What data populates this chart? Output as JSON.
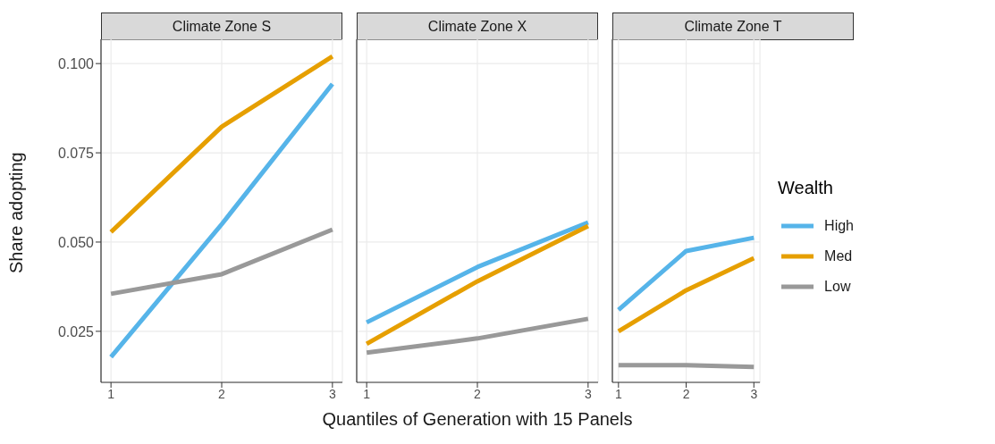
{
  "chart_data": [
    {
      "type": "line",
      "title": "Climate Zone S",
      "ylabel": "Share adopting",
      "x": [
        1,
        2,
        3
      ],
      "xlim": [
        0.91,
        3.09
      ],
      "xticks": [
        1,
        2,
        3
      ],
      "ylim": [
        0.0107,
        0.1068
      ],
      "yticks": [
        {
          "value": 0.025,
          "label": "0.025"
        },
        {
          "value": 0.05,
          "label": "0.050"
        },
        {
          "value": 0.075,
          "label": "0.075"
        },
        {
          "value": 0.1,
          "label": "0.100"
        }
      ],
      "grid": true,
      "legend": false,
      "series": [
        {
          "color": "#56b4e9",
          "values": [
            0.0178,
            0.055,
            0.0943
          ]
        },
        {
          "color": "#e69f00",
          "values": [
            0.0528,
            0.0823,
            0.102
          ]
        },
        {
          "color": "#999999",
          "values": [
            0.0355,
            0.041,
            0.0535
          ]
        }
      ]
    },
    {
      "type": "line",
      "title": "Climate Zone X",
      "xlabel": "Quantiles of Generation with 15 Panels",
      "x": [
        1,
        2,
        3
      ],
      "xlim": [
        0.91,
        3.09
      ],
      "xticks": [
        1,
        2,
        3
      ],
      "ylim": [
        0.0107,
        0.1068
      ],
      "yticks": [
        0.025,
        0.05,
        0.075,
        0.1
      ],
      "tick_labels": "x",
      "grid": true,
      "legend": false,
      "series": [
        {
          "color": "#56b4e9",
          "values": [
            0.0275,
            0.043,
            0.0555
          ]
        },
        {
          "color": "#e69f00",
          "values": [
            0.0215,
            0.039,
            0.0545
          ]
        },
        {
          "color": "#999999",
          "values": [
            0.019,
            0.023,
            0.0285
          ]
        }
      ]
    },
    {
      "type": "line",
      "title": "Climate Zone T",
      "legend_title": "Wealth",
      "x": [
        1,
        2,
        3
      ],
      "xlim": [
        0.91,
        3.09
      ],
      "xticks": [
        1,
        2,
        3
      ],
      "ylim": [
        0.0107,
        0.1068
      ],
      "yticks": [
        0.025,
        0.05,
        0.075,
        0.1
      ],
      "tick_labels": "x",
      "grid": true,
      "legend": "right",
      "series": [
        {
          "name": "High",
          "color": "#56b4e9",
          "values": [
            0.031,
            0.0475,
            0.0512
          ]
        },
        {
          "name": "Med",
          "color": "#e69f00",
          "values": [
            0.025,
            0.0365,
            0.0455
          ]
        },
        {
          "name": "Low",
          "color": "#999999",
          "values": [
            0.0155,
            0.0155,
            0.015
          ]
        }
      ]
    }
  ]
}
